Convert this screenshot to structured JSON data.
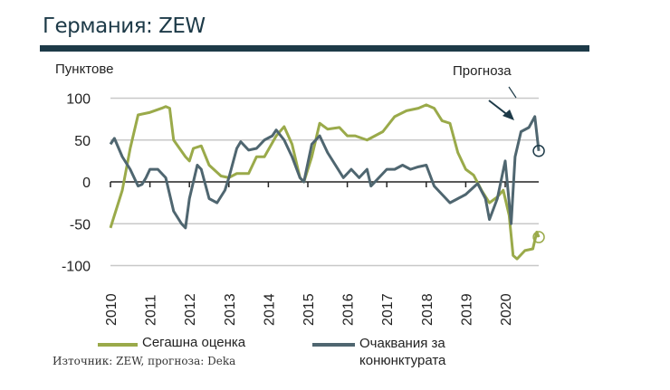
{
  "title": "Германия: ZEW",
  "source": "Източник: ZEW, прогноза: Deka",
  "chart_data": {
    "type": "line",
    "ylabel": "Пунктове",
    "annotation": "Прогноза",
    "ylim": [
      -100,
      100
    ],
    "yticks": [
      100,
      50,
      0,
      -50,
      -100
    ],
    "xlim": [
      2010,
      2020.85
    ],
    "xticks": [
      "2010",
      "2011",
      "2012",
      "2013",
      "2014",
      "2015",
      "2016",
      "2017",
      "2018",
      "2019",
      "2020"
    ],
    "grid": true,
    "legend_position": "bottom",
    "series": [
      {
        "name": "Сегашна оценка",
        "color": "#9aaa4a",
        "forecast_end": -66,
        "points": [
          [
            2010.0,
            -55
          ],
          [
            2010.3,
            -10
          ],
          [
            2010.5,
            40
          ],
          [
            2010.7,
            80
          ],
          [
            2011.0,
            83
          ],
          [
            2011.3,
            88
          ],
          [
            2011.4,
            90
          ],
          [
            2011.5,
            88
          ],
          [
            2011.6,
            50
          ],
          [
            2011.9,
            30
          ],
          [
            2012.0,
            25
          ],
          [
            2012.1,
            40
          ],
          [
            2012.3,
            43
          ],
          [
            2012.5,
            20
          ],
          [
            2012.8,
            7
          ],
          [
            2013.0,
            5
          ],
          [
            2013.2,
            10
          ],
          [
            2013.5,
            10
          ],
          [
            2013.7,
            30
          ],
          [
            2013.9,
            30
          ],
          [
            2014.2,
            55
          ],
          [
            2014.4,
            66
          ],
          [
            2014.6,
            45
          ],
          [
            2014.8,
            5
          ],
          [
            2014.9,
            0
          ],
          [
            2015.1,
            30
          ],
          [
            2015.3,
            70
          ],
          [
            2015.5,
            63
          ],
          [
            2015.8,
            65
          ],
          [
            2016.0,
            55
          ],
          [
            2016.2,
            55
          ],
          [
            2016.5,
            50
          ],
          [
            2016.7,
            55
          ],
          [
            2016.9,
            60
          ],
          [
            2017.2,
            78
          ],
          [
            2017.5,
            85
          ],
          [
            2017.8,
            88
          ],
          [
            2018.0,
            92
          ],
          [
            2018.2,
            88
          ],
          [
            2018.4,
            73
          ],
          [
            2018.6,
            70
          ],
          [
            2018.8,
            35
          ],
          [
            2019.0,
            15
          ],
          [
            2019.2,
            8
          ],
          [
            2019.4,
            -10
          ],
          [
            2019.6,
            -25
          ],
          [
            2019.8,
            -18
          ],
          [
            2019.95,
            -10
          ],
          [
            2020.1,
            -40
          ],
          [
            2020.2,
            -88
          ],
          [
            2020.3,
            -92
          ],
          [
            2020.5,
            -82
          ],
          [
            2020.7,
            -80
          ],
          [
            2020.8,
            -60
          ],
          [
            2020.85,
            -66
          ]
        ]
      },
      {
        "name": "Очаквания за конюнктурата",
        "color": "#4f6670",
        "forecast_end": 37,
        "points": [
          [
            2010.0,
            45
          ],
          [
            2010.1,
            52
          ],
          [
            2010.3,
            30
          ],
          [
            2010.5,
            15
          ],
          [
            2010.7,
            -5
          ],
          [
            2010.8,
            -3
          ],
          [
            2010.9,
            5
          ],
          [
            2011.0,
            15
          ],
          [
            2011.2,
            15
          ],
          [
            2011.4,
            5
          ],
          [
            2011.6,
            -35
          ],
          [
            2011.8,
            -50
          ],
          [
            2011.9,
            -55
          ],
          [
            2012.0,
            -20
          ],
          [
            2012.2,
            20
          ],
          [
            2012.3,
            15
          ],
          [
            2012.5,
            -20
          ],
          [
            2012.7,
            -25
          ],
          [
            2012.9,
            -10
          ],
          [
            2013.0,
            5
          ],
          [
            2013.2,
            40
          ],
          [
            2013.3,
            48
          ],
          [
            2013.5,
            38
          ],
          [
            2013.7,
            40
          ],
          [
            2013.9,
            50
          ],
          [
            2014.1,
            55
          ],
          [
            2014.2,
            62
          ],
          [
            2014.4,
            50
          ],
          [
            2014.6,
            30
          ],
          [
            2014.8,
            5
          ],
          [
            2014.9,
            0
          ],
          [
            2015.1,
            45
          ],
          [
            2015.3,
            55
          ],
          [
            2015.5,
            35
          ],
          [
            2015.7,
            20
          ],
          [
            2015.9,
            5
          ],
          [
            2016.1,
            15
          ],
          [
            2016.3,
            5
          ],
          [
            2016.5,
            15
          ],
          [
            2016.6,
            -5
          ],
          [
            2016.8,
            5
          ],
          [
            2017.0,
            15
          ],
          [
            2017.2,
            15
          ],
          [
            2017.4,
            20
          ],
          [
            2017.6,
            15
          ],
          [
            2017.8,
            18
          ],
          [
            2018.0,
            20
          ],
          [
            2018.2,
            -5
          ],
          [
            2018.4,
            -15
          ],
          [
            2018.6,
            -25
          ],
          [
            2018.8,
            -20
          ],
          [
            2019.0,
            -15
          ],
          [
            2019.3,
            -2
          ],
          [
            2019.5,
            -20
          ],
          [
            2019.6,
            -45
          ],
          [
            2019.8,
            -20
          ],
          [
            2020.0,
            25
          ],
          [
            2020.15,
            -50
          ],
          [
            2020.25,
            30
          ],
          [
            2020.4,
            60
          ],
          [
            2020.6,
            65
          ],
          [
            2020.75,
            78
          ],
          [
            2020.85,
            37
          ]
        ]
      }
    ]
  }
}
